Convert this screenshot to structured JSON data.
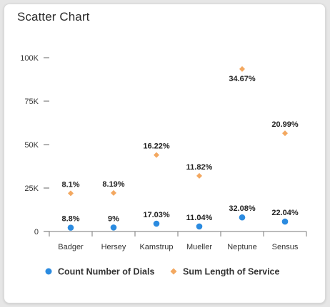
{
  "chart_data": {
    "type": "scatter",
    "title": "Scatter Chart",
    "categories": [
      "Badger",
      "Hersey",
      "Kamstrup",
      "Mueller",
      "Neptune",
      "Sensus"
    ],
    "y_ticks": [
      {
        "value": 0,
        "label": "0"
      },
      {
        "value": 25000,
        "label": "25K"
      },
      {
        "value": 50000,
        "label": "50K"
      },
      {
        "value": 75000,
        "label": "75K"
      },
      {
        "value": 100000,
        "label": "100K"
      }
    ],
    "ylim": [
      0,
      100000
    ],
    "grid": false,
    "legend_position": "bottom",
    "series": [
      {
        "name": "Count Number of Dials",
        "marker": "circle",
        "color": "#2b8be0",
        "values": [
          2200,
          2300,
          4500,
          2900,
          8100,
          5700
        ],
        "labels": [
          "8.8%",
          "9%",
          "17.03%",
          "11.04%",
          "32.08%",
          "22.04%"
        ]
      },
      {
        "name": "Sum Length of Service",
        "marker": "diamond",
        "color": "#f3a860",
        "values": [
          22000,
          22200,
          44000,
          32000,
          93500,
          56500
        ],
        "labels": [
          "8.1%",
          "8.19%",
          "16.22%",
          "11.82%",
          "34.67%",
          "20.99%"
        ]
      }
    ]
  }
}
